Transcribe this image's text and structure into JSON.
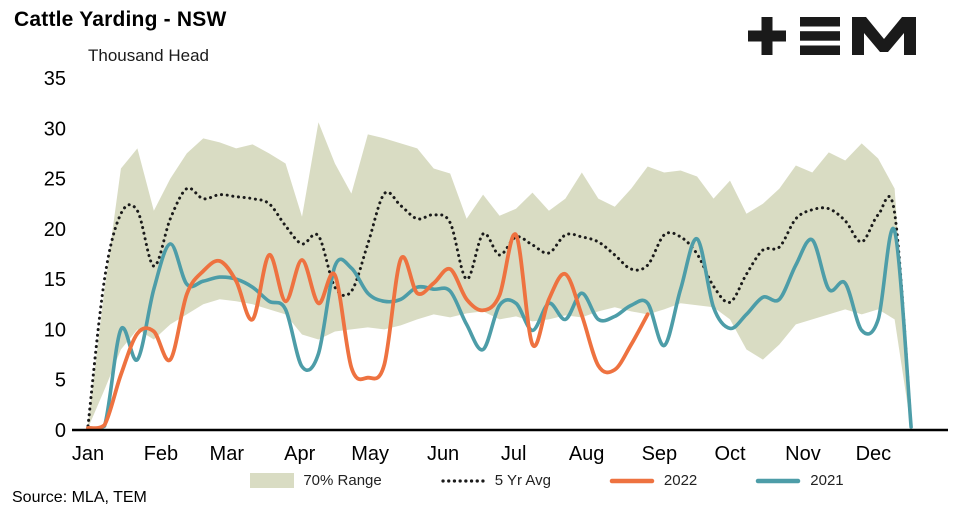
{
  "header": {
    "title": "Cattle Yarding - NSW",
    "subtitle": "Thousand Head",
    "logo_name": "TEM"
  },
  "source": "Source: MLA, TEM",
  "legend": {
    "range": "70% Range",
    "avg": "5 Yr Avg",
    "s2022": "2022",
    "s2021": "2021"
  },
  "colors": {
    "band": "#d9dcc3",
    "avg": "#1a1a1a",
    "y2022": "#ee7240",
    "y2021": "#4d9da8",
    "axis": "#000000",
    "logo": "#1a1a1a"
  },
  "chart_data": {
    "type": "line",
    "title": "Cattle Yarding - NSW",
    "ylabel": "Thousand Head",
    "ylim": [
      0,
      35
    ],
    "yticks": [
      0,
      5,
      10,
      15,
      20,
      25,
      30,
      35
    ],
    "grid": false,
    "legend_position": "bottom",
    "x_unit": "week-of-year",
    "x_weeks": 52,
    "categories": [
      "Jan",
      "Feb",
      "Mar",
      "Apr",
      "May",
      "Jun",
      "Jul",
      "Aug",
      "Sep",
      "Oct",
      "Nov",
      "Dec"
    ],
    "month_positions_weeks": [
      0,
      4.43,
      8.43,
      12.86,
      17.14,
      21.57,
      25.86,
      30.29,
      34.71,
      39.0,
      43.43,
      47.71
    ],
    "band_70_range": {
      "name": "70% Range",
      "upper": [
        0.5,
        14.0,
        26.0,
        28.0,
        21.8,
        25.0,
        27.5,
        29.0,
        28.6,
        28.0,
        28.4,
        27.5,
        26.5,
        21.2,
        30.6,
        26.5,
        23.5,
        29.4,
        29.0,
        28.5,
        28.0,
        26.0,
        25.5,
        21.0,
        23.4,
        21.3,
        22.0,
        23.6,
        21.8,
        23.0,
        25.6,
        23.0,
        22.2,
        24.0,
        26.2,
        25.6,
        25.8,
        25.2,
        23.0,
        24.8,
        21.5,
        22.5,
        24.0,
        26.3,
        25.6,
        27.6,
        26.8,
        28.5,
        27.0,
        24.0,
        0.5
      ],
      "lower": [
        0.2,
        4.0,
        8.0,
        10.0,
        9.0,
        10.5,
        11.5,
        12.5,
        13.0,
        12.8,
        12.5,
        12.0,
        11.5,
        9.5,
        9.0,
        9.8,
        10.0,
        10.2,
        10.0,
        10.4,
        11.0,
        11.5,
        11.2,
        11.6,
        11.8,
        11.0,
        11.3,
        10.8,
        11.0,
        11.4,
        11.2,
        11.8,
        12.2,
        11.8,
        11.5,
        12.0,
        12.6,
        12.4,
        12.2,
        11.0,
        8.0,
        7.0,
        8.5,
        10.5,
        11.0,
        11.5,
        12.0,
        11.5,
        12.0,
        11.0,
        0.2
      ]
    },
    "series": [
      {
        "name": "5 Yr Avg",
        "style": "dotted",
        "values": [
          0.4,
          15.0,
          21.5,
          21.8,
          16.3,
          21.0,
          24.0,
          23.0,
          23.4,
          23.2,
          23.0,
          22.5,
          20.3,
          18.5,
          19.3,
          14.2,
          13.8,
          18.5,
          23.5,
          22.3,
          21.0,
          21.4,
          20.6,
          15.0,
          19.5,
          17.4,
          19.2,
          18.4,
          17.6,
          19.4,
          19.2,
          18.7,
          17.4,
          16.0,
          16.4,
          19.4,
          19.2,
          17.5,
          14.3,
          12.7,
          15.5,
          17.9,
          18.2,
          21.0,
          21.9,
          22.0,
          20.8,
          18.7,
          21.4,
          21.6,
          0.3
        ]
      },
      {
        "name": "2022",
        "style": "solid",
        "values": [
          0.2,
          0.5,
          5.5,
          9.6,
          9.8,
          7.0,
          13.5,
          15.8,
          16.8,
          14.8,
          11.0,
          17.4,
          12.8,
          16.9,
          12.6,
          15.4,
          6.2,
          5.2,
          6.5,
          17.0,
          13.6,
          14.6,
          16.0,
          13.0,
          11.9,
          13.4,
          19.4,
          8.5,
          13.0,
          15.5,
          11.4,
          6.4,
          6.0,
          8.5,
          11.5
        ]
      },
      {
        "name": "2021",
        "style": "solid",
        "values": [
          0.2,
          0.4,
          10.0,
          7.0,
          14.0,
          18.5,
          14.5,
          14.8,
          15.2,
          15.0,
          14.2,
          12.8,
          12.0,
          6.3,
          7.6,
          16.3,
          16.1,
          13.6,
          12.8,
          13.0,
          14.2,
          14.0,
          13.8,
          10.5,
          8.0,
          12.4,
          12.6,
          9.9,
          12.6,
          11.0,
          13.6,
          11.0,
          11.3,
          12.4,
          12.6,
          8.4,
          14.0,
          19.0,
          12.2,
          10.1,
          11.5,
          13.2,
          13.0,
          16.4,
          18.9,
          14.0,
          14.6,
          9.9,
          11.0,
          19.8,
          0.3
        ]
      }
    ]
  }
}
